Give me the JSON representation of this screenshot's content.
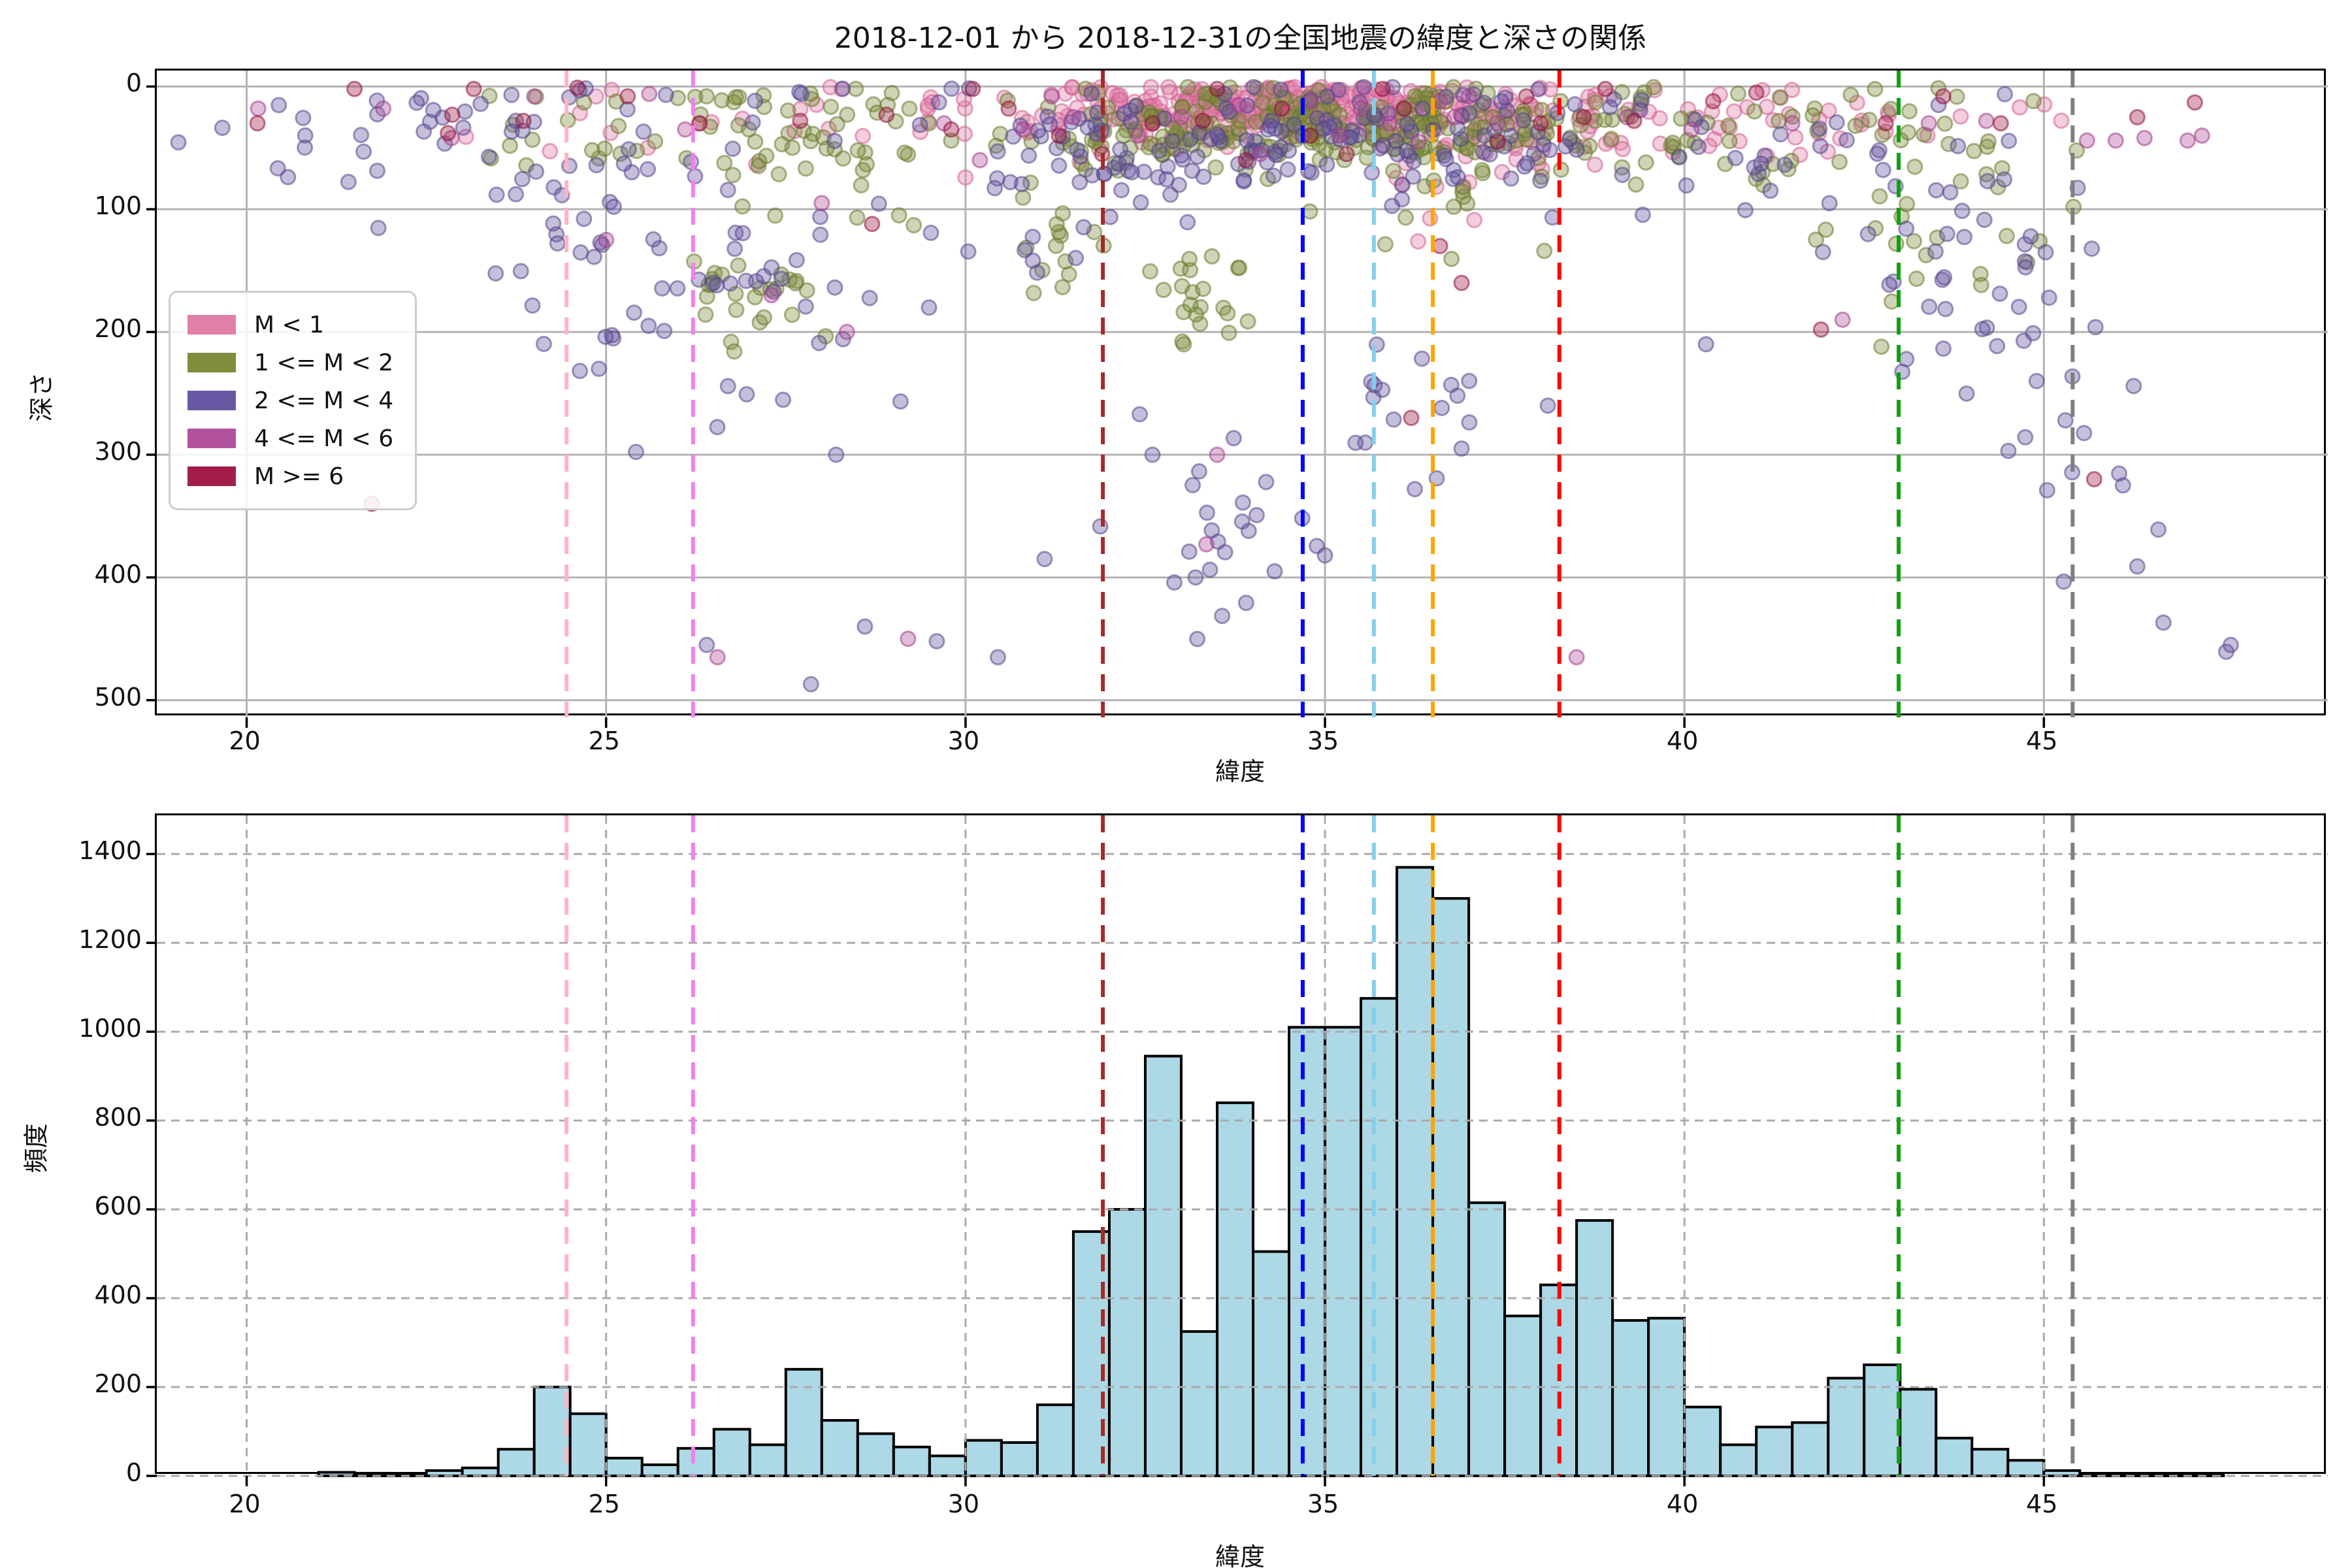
{
  "figure": {
    "title": "2018-12-01 から 2018-12-31の全国地震の緯度と深さの関係"
  },
  "chart_data": [
    {
      "type": "scatter",
      "title": "2018-12-01 から 2018-12-31の全国地震の緯度と深さの関係",
      "xlabel": "緯度",
      "ylabel": "深さ",
      "xlim": [
        18.75,
        48.95
      ],
      "ylim": [
        514,
        -13
      ],
      "y_axis_inverted": true,
      "x_ticks": [
        20,
        25,
        30,
        35,
        40,
        45
      ],
      "y_ticks": [
        0,
        100,
        200,
        300,
        400,
        500
      ],
      "grid": {
        "on": true,
        "style": "solid",
        "color": "#b3b3b3"
      },
      "legend_position": "center left",
      "marker": {
        "radius": 11,
        "fill_opacity": 0.38,
        "stroke_opacity": 0.55,
        "stroke_width": 3
      },
      "legend": [
        {
          "label": "M < 1",
          "color": "#E07FA8"
        },
        {
          "label": "1 <= M < 2",
          "color": "#7E8E3C"
        },
        {
          "label": "2 <= M < 4",
          "color": "#6857A3"
        },
        {
          "label": "4 <= M < 6",
          "color": "#B2519E"
        },
        {
          "label": "M >= 6",
          "color": "#A21D47"
        }
      ],
      "series": [
        {
          "name": "M < 1",
          "color": "#E07FA8",
          "edge": "#D45E92",
          "clusters": [
            [
              34.9,
              1.55,
              18,
              11,
              260
            ],
            [
              32.6,
              0.85,
              22,
              13,
              70
            ],
            [
              36.9,
              1.1,
              45,
              30,
              45
            ],
            [
              39.6,
              1.7,
              28,
              16,
              40
            ],
            [
              30.0,
              1.4,
              30,
              18,
              22
            ],
            [
              43.3,
              1.0,
              25,
              15,
              14
            ],
            [
              26.8,
              1.4,
              28,
              16,
              10
            ],
            [
              24.5,
              0.8,
              25,
              15,
              6
            ]
          ],
          "points": []
        },
        {
          "name": "1 <= M < 2",
          "color": "#7E8E3C",
          "edge": "#6A7A30",
          "clusters": [
            [
              35.4,
              1.5,
              32,
              18,
              150
            ],
            [
              32.7,
              1.0,
              35,
              20,
              75
            ],
            [
              28.0,
              1.1,
              45,
              32,
              55
            ],
            [
              27.0,
              0.4,
              165,
              25,
              26
            ],
            [
              33.4,
              0.35,
              170,
              22,
              22
            ],
            [
              39.8,
              1.8,
              35,
              25,
              55
            ],
            [
              43.6,
              0.9,
              80,
              60,
              40
            ],
            [
              24.8,
              1.0,
              35,
              25,
              22
            ],
            [
              31.3,
              0.35,
              130,
              22,
              14
            ],
            [
              36.8,
              1.0,
              60,
              35,
              40
            ]
          ],
          "points": []
        },
        {
          "name": "2 <= M < 4",
          "color": "#6857A3",
          "edge": "#554589",
          "clusters": [
            [
              35.6,
              2.1,
              38,
              24,
              115
            ],
            [
              32.3,
              1.3,
              48,
              30,
              55
            ],
            [
              24.8,
              0.8,
              100,
              60,
              42
            ],
            [
              27.0,
              0.9,
              160,
              95,
              38
            ],
            [
              40.8,
              2.0,
              60,
              45,
              32
            ],
            [
              43.8,
              0.9,
              130,
              75,
              36
            ],
            [
              45.9,
              0.9,
              300,
              85,
              16
            ],
            [
              33.8,
              0.7,
              355,
              40,
              22
            ],
            [
              36.3,
              0.6,
              270,
              30,
              16
            ],
            [
              22.3,
              1.2,
              30,
              25,
              22
            ],
            [
              30.3,
              0.8,
              100,
              65,
              12
            ],
            [
              21.0,
              0.9,
              55,
              35,
              10
            ]
          ],
          "points": [
            [
              27.85,
              487
            ],
            [
              30.45,
              465
            ],
            [
              47.6,
              455
            ],
            [
              46.3,
              391
            ],
            [
              46.1,
              325
            ],
            [
              28.6,
              440
            ],
            [
              29.6,
              452
            ],
            [
              31.1,
              385
            ],
            [
              32.6,
              300
            ],
            [
              33.2,
              400
            ],
            [
              34.3,
              395
            ],
            [
              35.0,
              382
            ],
            [
              44.9,
              240
            ],
            [
              45.3,
              272
            ],
            [
              36.9,
              295
            ],
            [
              38.1,
              260
            ],
            [
              40.3,
              210
            ],
            [
              24.9,
              230
            ],
            [
              26.4,
              455
            ],
            [
              28.2,
              300
            ]
          ]
        },
        {
          "name": "4 <= M < 6",
          "color": "#B2519E",
          "edge": "#9C3E8A",
          "clusters": [],
          "points": [
            [
              20.16,
              18
            ],
            [
              21.9,
              18
            ],
            [
              22.85,
              42
            ],
            [
              24.0,
              8
            ],
            [
              25.6,
              6
            ],
            [
              26.1,
              35
            ],
            [
              26.55,
              465
            ],
            [
              27.3,
              170
            ],
            [
              28.35,
              200
            ],
            [
              29.2,
              450
            ],
            [
              29.7,
              30
            ],
            [
              30.8,
              35
            ],
            [
              31.2,
              8
            ],
            [
              31.5,
              25
            ],
            [
              32.4,
              40
            ],
            [
              33.0,
              25
            ],
            [
              33.35,
              373
            ],
            [
              33.8,
              15
            ],
            [
              34.1,
              55
            ],
            [
              34.8,
              12
            ],
            [
              35.2,
              40
            ],
            [
              35.5,
              18
            ],
            [
              35.9,
              30
            ],
            [
              36.3,
              45
            ],
            [
              36.8,
              25
            ],
            [
              37.0,
              8
            ],
            [
              37.4,
              30
            ],
            [
              38.5,
              465
            ],
            [
              39.2,
              25
            ],
            [
              40.1,
              35
            ],
            [
              41.5,
              30
            ],
            [
              42.2,
              190
            ],
            [
              43.4,
              30
            ],
            [
              44.2,
              28
            ],
            [
              45.6,
              44
            ],
            [
              46.0,
              44
            ],
            [
              46.4,
              42
            ],
            [
              47.0,
              44
            ],
            [
              47.2,
              40
            ],
            [
              25.0,
              125
            ],
            [
              28.0,
              95
            ],
            [
              36.6,
              12
            ],
            [
              33.5,
              300
            ],
            [
              30.2,
              60
            ]
          ]
        },
        {
          "name": "M >= 6",
          "color": "#A21D47",
          "edge": "#8C1238",
          "clusters": [],
          "points": [
            [
              20.15,
              30
            ],
            [
              21.5,
              2
            ],
            [
              21.74,
              340
            ],
            [
              22.8,
              38
            ],
            [
              22.86,
              23
            ],
            [
              23.16,
              2
            ],
            [
              23.85,
              28
            ],
            [
              24.6,
              1
            ],
            [
              25.3,
              8
            ],
            [
              26.3,
              30
            ],
            [
              27.7,
              28
            ],
            [
              28.7,
              112
            ],
            [
              28.9,
              23
            ],
            [
              29.8,
              35
            ],
            [
              30.1,
              2
            ],
            [
              30.6,
              18
            ],
            [
              31.3,
              40
            ],
            [
              31.9,
              55
            ],
            [
              32.6,
              30
            ],
            [
              33.3,
              28
            ],
            [
              33.5,
              2
            ],
            [
              33.9,
              60
            ],
            [
              34.4,
              18
            ],
            [
              34.8,
              40
            ],
            [
              35.3,
              55
            ],
            [
              35.8,
              2
            ],
            [
              36.1,
              18
            ],
            [
              36.2,
              270
            ],
            [
              36.6,
              130
            ],
            [
              36.9,
              160
            ],
            [
              37.4,
              45
            ],
            [
              37.8,
              8
            ],
            [
              38.0,
              30
            ],
            [
              38.6,
              25
            ],
            [
              38.9,
              2
            ],
            [
              39.3,
              28
            ],
            [
              40.4,
              12
            ],
            [
              41.0,
              5
            ],
            [
              41.9,
              198
            ],
            [
              42.8,
              30
            ],
            [
              43.6,
              8
            ],
            [
              44.4,
              30
            ],
            [
              45.7,
              320
            ],
            [
              46.3,
              25
            ],
            [
              47.1,
              13
            ]
          ]
        }
      ],
      "vlines": [
        {
          "lat": 24.45,
          "color": "#FFB3C6"
        },
        {
          "lat": 26.21,
          "color": "#EE82EE"
        },
        {
          "lat": 31.91,
          "color": "#A52A2A"
        },
        {
          "lat": 34.69,
          "color": "#0000FF"
        },
        {
          "lat": 35.68,
          "color": "#87CEEB"
        },
        {
          "lat": 36.5,
          "color": "#FFA500"
        },
        {
          "lat": 38.26,
          "color": "#FF0000"
        },
        {
          "lat": 42.98,
          "color": "#0FA00F"
        },
        {
          "lat": 45.4,
          "color": "#7F7F7F"
        }
      ]
    },
    {
      "type": "histogram",
      "xlabel": "緯度",
      "ylabel": "頻度",
      "xlim": [
        18.75,
        48.95
      ],
      "ylim": [
        0,
        1487
      ],
      "x_ticks": [
        20,
        25,
        30,
        35,
        40,
        45
      ],
      "y_ticks": [
        0,
        200,
        400,
        600,
        800,
        1000,
        1200,
        1400
      ],
      "grid": {
        "on": true,
        "style": "dashed",
        "color": "#ababab"
      },
      "bar_color": "#ADD8E6",
      "bar_edge_color": "#000000",
      "bin_start": 21.0,
      "bin_width": 0.5,
      "values": [
        8,
        6,
        3,
        12,
        18,
        60,
        200,
        140,
        40,
        25,
        62,
        105,
        70,
        240,
        125,
        95,
        65,
        45,
        80,
        75,
        160,
        550,
        600,
        945,
        325,
        840,
        505,
        1010,
        1010,
        1075,
        1370,
        1300,
        615,
        360,
        430,
        575,
        350,
        355,
        155,
        70,
        110,
        120,
        220,
        250,
        195,
        85,
        60,
        35,
        12,
        5,
        3,
        2,
        2
      ],
      "vlines": [
        {
          "lat": 24.45,
          "color": "#FFB3C6"
        },
        {
          "lat": 26.21,
          "color": "#EE82EE"
        },
        {
          "lat": 31.91,
          "color": "#A52A2A"
        },
        {
          "lat": 34.69,
          "color": "#0000FF"
        },
        {
          "lat": 35.68,
          "color": "#87CEEB"
        },
        {
          "lat": 36.5,
          "color": "#FFA500"
        },
        {
          "lat": 38.26,
          "color": "#FF0000"
        },
        {
          "lat": 42.98,
          "color": "#0FA00F"
        },
        {
          "lat": 45.4,
          "color": "#7F7F7F"
        }
      ]
    }
  ],
  "seed": 42
}
